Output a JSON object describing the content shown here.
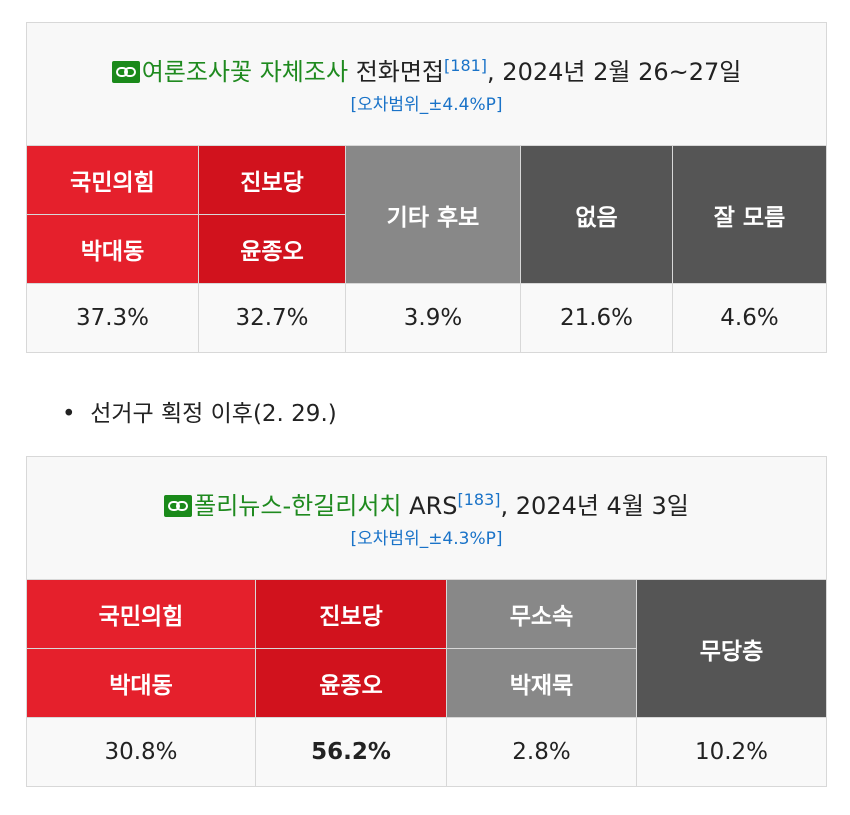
{
  "polls": [
    {
      "source": "여론조사꽃 자체조사",
      "method": "전화면접",
      "ref": "[181]",
      "date": ", 2024년 2월 26~27일",
      "margin": "[오차범위_±4.4%P]",
      "headers": [
        [
          "국민의힘",
          "박대동"
        ],
        [
          "진보당",
          "윤종오"
        ],
        [
          "기타 후보"
        ],
        [
          "없음"
        ],
        [
          "잘 모름"
        ]
      ],
      "values": [
        "37.3%",
        "32.7%",
        "3.9%",
        "21.6%",
        "4.6%"
      ]
    },
    {
      "source": "폴리뉴스-한길리서치",
      "method": "ARS",
      "ref": "[183]",
      "date": ", 2024년 4월 3일",
      "margin": "[오차범위_±4.3%P]",
      "headers": [
        [
          "국민의힘",
          "박대동"
        ],
        [
          "진보당",
          "윤종오"
        ],
        [
          "무소속",
          "박재묵"
        ],
        [
          "무당층"
        ]
      ],
      "values": [
        "30.8%",
        "56.2%",
        "2.8%",
        "10.2%"
      ]
    }
  ],
  "bullet": "선거구 획정 이후(2. 29.)"
}
